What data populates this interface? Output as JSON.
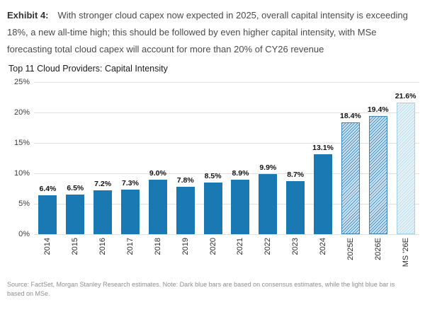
{
  "exhibit": {
    "label": "Exhibit 4:",
    "text": "With stronger cloud capex now expected in 2025, overall capital intensity is exceeding 18%, a new all-time high; this should be followed by even higher capital intensity, with MSe forecasting total cloud capex will account for more than 20% of CY26 revenue"
  },
  "chart_data": {
    "type": "bar",
    "title": "Top 11 Cloud Providers: Capital Intensity",
    "categories": [
      "2014",
      "2015",
      "2016",
      "2017",
      "2018",
      "2019",
      "2020",
      "2021",
      "2022",
      "2023",
      "2024",
      "2025E",
      "2026E",
      "MS '26E"
    ],
    "values": [
      6.4,
      6.5,
      7.2,
      7.3,
      9.0,
      7.8,
      8.5,
      8.9,
      9.9,
      8.7,
      13.1,
      18.4,
      19.4,
      21.6
    ],
    "labels": [
      "6.4%",
      "6.5%",
      "7.2%",
      "7.3%",
      "9.0%",
      "7.8%",
      "8.5%",
      "8.9%",
      "9.9%",
      "8.7%",
      "13.1%",
      "18.4%",
      "19.4%",
      "21.6%"
    ],
    "bar_styles": [
      "solid",
      "solid",
      "solid",
      "solid",
      "solid",
      "solid",
      "solid",
      "solid",
      "solid",
      "solid",
      "solid",
      "hatch_medium",
      "hatch_medium",
      "hatch_light"
    ],
    "xlabel": "",
    "ylabel": "",
    "ylim": [
      0,
      25
    ],
    "yticks": [
      "25%",
      "20%",
      "15%",
      "10%",
      "5%",
      "0%"
    ],
    "grid": true,
    "legend": "none",
    "colors": {
      "solid": "#1a79b3",
      "hatch_medium_bg": "#cfe3f1",
      "hatch_medium_stripe": "#4e94c6",
      "hatch_medium_border": "#3d85ba",
      "hatch_light_bg": "#e8f3f8",
      "hatch_light_stripe": "#bddeeb",
      "hatch_light_border": "#a5d0e2",
      "gridline": "#e0e0e0"
    }
  },
  "source_note": "Source: FactSet, Morgan Stanley Research estimates. Note: Dark blue bars are based on consensus estimates, while the light blue bar is based on MSe."
}
